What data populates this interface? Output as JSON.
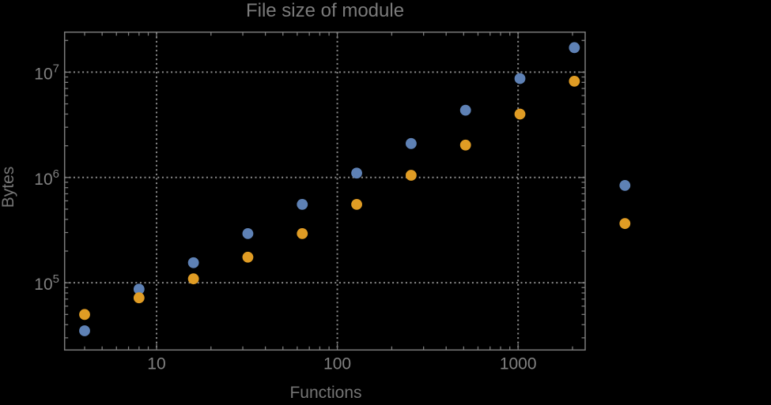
{
  "title": "File size of module",
  "axes": {
    "x_label": "Functions",
    "y_label": "Bytes",
    "x_tick_labels": [
      "10",
      "100",
      "1000"
    ],
    "x_tick_values": [
      10,
      100,
      1000
    ],
    "y_tick_labels": [
      "10^5",
      "10^6",
      "10^7"
    ],
    "y_tick_values": [
      100000,
      1000000,
      10000000
    ]
  },
  "colors": {
    "background": "#000000",
    "frame": "#7a7a7a",
    "grid": "#8c8c8c",
    "tick_text": "#808080",
    "series_blue": "#5e81b5",
    "series_orange": "#e09c24"
  },
  "chart_data": {
    "type": "scatter",
    "title": "File size of module",
    "xlabel": "Functions",
    "ylabel": "Bytes",
    "x_scale": "log10",
    "y_scale": "log10",
    "xlim": [
      3.1,
      2350
    ],
    "ylim": [
      23000,
      24000000
    ],
    "grid": "dotted gray lines at powers of 10, both axes",
    "legend": "none",
    "x": [
      4,
      8,
      16,
      32,
      64,
      128,
      256,
      512,
      1024,
      2048,
      3900
    ],
    "series": [
      {
        "name": "blue",
        "color": "#5e81b5",
        "values": [
          35000,
          87000,
          155000,
          293000,
          555000,
          1100000,
          2100000,
          4350000,
          8700000,
          17100000,
          840000
        ]
      },
      {
        "name": "orange",
        "color": "#e09c24",
        "values": [
          50000,
          72000,
          109000,
          175000,
          293000,
          555000,
          1050000,
          2030000,
          4000000,
          8200000,
          365000
        ]
      }
    ],
    "note": "Last pair (x≈3900) is rendered outside the right edge of the plot frame (unclipped points)."
  }
}
